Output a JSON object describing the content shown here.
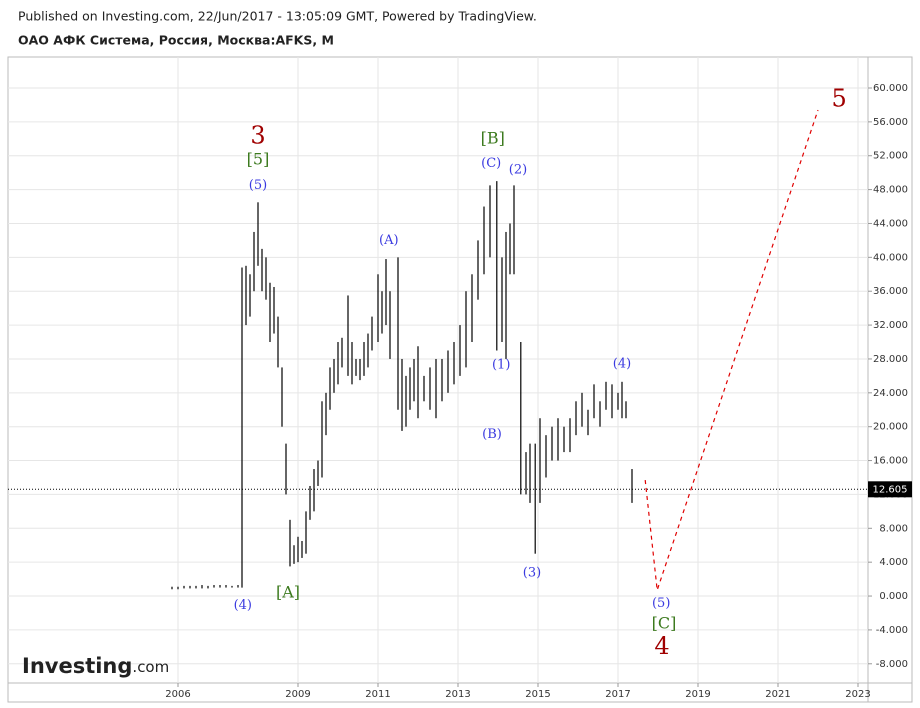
{
  "header": {
    "published": "Published on Investing.com, 22/Jun/2017 - 13:05:09 GMT, Powered by TradingView.",
    "symbol": "ОАО АФК Система, Россия, Москва:AFKS, M"
  },
  "logo": {
    "brand": "Investing",
    "suffix": ".com"
  },
  "chart_data": {
    "type": "range-bar",
    "color": "#000000",
    "xlim": [
      2001.75,
      2023.25
    ],
    "ylim": [
      -10.27,
      63.66
    ],
    "xticks": [
      2006,
      2009,
      2011,
      2013,
      2015,
      2017,
      2019,
      2021,
      2023
    ],
    "yticks": [
      {
        "value": 60,
        "label": "60.000"
      },
      {
        "value": 56,
        "label": "56.000"
      },
      {
        "value": 52,
        "label": "52.000"
      },
      {
        "value": 48,
        "label": "48.000"
      },
      {
        "value": 44,
        "label": "44.000"
      },
      {
        "value": 40,
        "label": "40.000"
      },
      {
        "value": 36,
        "label": "36.000"
      },
      {
        "value": 32,
        "label": "32.000"
      },
      {
        "value": 28,
        "label": "28.000"
      },
      {
        "value": 24,
        "label": "24.000"
      },
      {
        "value": 20,
        "label": "20.000"
      },
      {
        "value": 16,
        "label": "16.000"
      },
      {
        "value": 12,
        "label": "12.000"
      },
      {
        "value": 8,
        "label": "8.000"
      },
      {
        "value": 4,
        "label": "4.000"
      },
      {
        "value": 0,
        "label": "0.000"
      },
      {
        "value": -4,
        "label": "-4.000"
      },
      {
        "value": -8,
        "label": "-8.000"
      }
    ],
    "grid": true,
    "x": [
      2005.85,
      2006.0,
      2006.15,
      2006.3,
      2006.45,
      2006.6,
      2006.75,
      2006.9,
      2007.05,
      2007.2,
      2007.35,
      2007.5,
      2007.6,
      2007.7,
      2007.8,
      2007.9,
      2008.0,
      2008.1,
      2008.2,
      2008.3,
      2008.4,
      2008.5,
      2008.6,
      2008.7,
      2008.8,
      2008.9,
      2009.0,
      2009.1,
      2009.2,
      2009.3,
      2009.4,
      2009.5,
      2009.6,
      2009.7,
      2009.8,
      2009.9,
      2010.0,
      2010.1,
      2010.25,
      2010.35,
      2010.45,
      2010.55,
      2010.65,
      2010.75,
      2010.85,
      2011.0,
      2011.1,
      2011.2,
      2011.3,
      2011.5,
      2011.6,
      2011.7,
      2011.8,
      2011.9,
      2012.0,
      2012.15,
      2012.3,
      2012.45,
      2012.6,
      2012.75,
      2012.9,
      2013.05,
      2013.2,
      2013.35,
      2013.5,
      2013.65,
      2013.8,
      2013.97,
      2014.1,
      2014.2,
      2014.3,
      2014.4,
      2014.57,
      2014.7,
      2014.8,
      2014.93,
      2015.05,
      2015.2,
      2015.35,
      2015.5,
      2015.65,
      2015.8,
      2015.95,
      2016.1,
      2016.25,
      2016.4,
      2016.55,
      2016.7,
      2016.85,
      2017.0,
      2017.1,
      2017.2,
      2017.35
    ],
    "high": [
      1.1,
      1.1,
      1.2,
      1.2,
      1.2,
      1.3,
      1.2,
      1.3,
      1.3,
      1.3,
      1.2,
      1.3,
      38.8,
      39,
      38,
      43,
      46.5,
      41,
      40,
      37,
      36.5,
      33,
      27,
      18,
      9,
      6,
      7,
      6.5,
      10,
      13,
      15,
      16,
      23,
      24,
      27,
      28,
      30,
      30.5,
      35.5,
      30,
      28,
      28,
      30,
      31,
      33,
      38,
      36,
      39.8,
      36,
      40,
      28,
      26,
      27,
      28,
      29.5,
      26,
      27,
      28,
      28,
      29,
      30,
      32,
      36,
      38,
      42,
      46,
      48.5,
      49,
      40,
      43,
      44,
      48.5,
      30,
      17,
      18,
      18,
      21,
      19,
      20,
      21,
      20,
      21,
      23,
      24,
      22,
      25,
      23,
      25.3,
      25,
      24,
      25.3,
      23,
      15
    ],
    "low": [
      0.8,
      0.8,
      0.9,
      0.9,
      0.9,
      0.9,
      0.9,
      1.0,
      1.0,
      1.0,
      1.0,
      1.0,
      1.0,
      32,
      33,
      36,
      39,
      36,
      35,
      30,
      31,
      27,
      20,
      12,
      3.5,
      3.8,
      4,
      4.5,
      5,
      9,
      10,
      13,
      14,
      19,
      22,
      24,
      25,
      27,
      26,
      25,
      26,
      25.5,
      26,
      27,
      29,
      30,
      31,
      32,
      28,
      22,
      19.5,
      20,
      22,
      23,
      21,
      23,
      22,
      21,
      23,
      24,
      25,
      26,
      27,
      30,
      35,
      38,
      40,
      29,
      30,
      28,
      38,
      38,
      12,
      12,
      11,
      5,
      11,
      14,
      16,
      16,
      17,
      17,
      19,
      20,
      19,
      21,
      20,
      22,
      21,
      22,
      21,
      21,
      11
    ],
    "last_price": {
      "value": 12.605,
      "label": "12.605"
    },
    "forecast": {
      "color": "#e00000",
      "x": [
        2017.68,
        2017.98,
        2022.0
      ],
      "values": [
        13.7,
        0.7,
        57.4
      ]
    },
    "annotations": [
      {
        "text": "3",
        "x": 2008.0,
        "y": 54.2,
        "color": "#a00000",
        "degree": "primary"
      },
      {
        "text": "[5]",
        "x": 2008.0,
        "y": 51.5,
        "color": "#3c7a1e",
        "degree": "intermediate"
      },
      {
        "text": "(5)",
        "x": 2008.0,
        "y": 48.5,
        "color": "#3a3ae0",
        "degree": "minor"
      },
      {
        "text": "(4)",
        "x": 2007.62,
        "y": -1.1,
        "color": "#3a3ae0",
        "degree": "minor"
      },
      {
        "text": "[A]",
        "x": 2008.75,
        "y": 0.35,
        "color": "#3c7a1e",
        "degree": "intermediate"
      },
      {
        "text": "(A)",
        "x": 2011.27,
        "y": 42,
        "color": "#3a3ae0",
        "degree": "minor"
      },
      {
        "text": "[B]",
        "x": 2013.87,
        "y": 54,
        "color": "#3c7a1e",
        "degree": "intermediate"
      },
      {
        "text": "(C)",
        "x": 2013.83,
        "y": 51.1,
        "color": "#3a3ae0",
        "degree": "minor"
      },
      {
        "text": "(2)",
        "x": 2014.5,
        "y": 50.3,
        "color": "#3a3ae0",
        "degree": "minor"
      },
      {
        "text": "(1)",
        "x": 2014.08,
        "y": 27.3,
        "color": "#3a3ae0",
        "degree": "minor"
      },
      {
        "text": "(B)",
        "x": 2013.85,
        "y": 19.1,
        "color": "#3a3ae0",
        "degree": "minor"
      },
      {
        "text": "(3)",
        "x": 2014.85,
        "y": 2.7,
        "color": "#3a3ae0",
        "degree": "minor"
      },
      {
        "text": "(4)",
        "x": 2017.1,
        "y": 27.4,
        "color": "#3a3ae0",
        "degree": "minor"
      },
      {
        "text": "(5)",
        "x": 2018.08,
        "y": -0.9,
        "color": "#3a3ae0",
        "degree": "minor"
      },
      {
        "text": "[C]",
        "x": 2018.15,
        "y": -3.3,
        "color": "#3c7a1e",
        "degree": "intermediate"
      },
      {
        "text": "4",
        "x": 2018.1,
        "y": -6.1,
        "color": "#a00000",
        "degree": "primary"
      },
      {
        "text": "5",
        "x": 2022.53,
        "y": 58.6,
        "color": "#a00000",
        "degree": "primary"
      }
    ]
  }
}
